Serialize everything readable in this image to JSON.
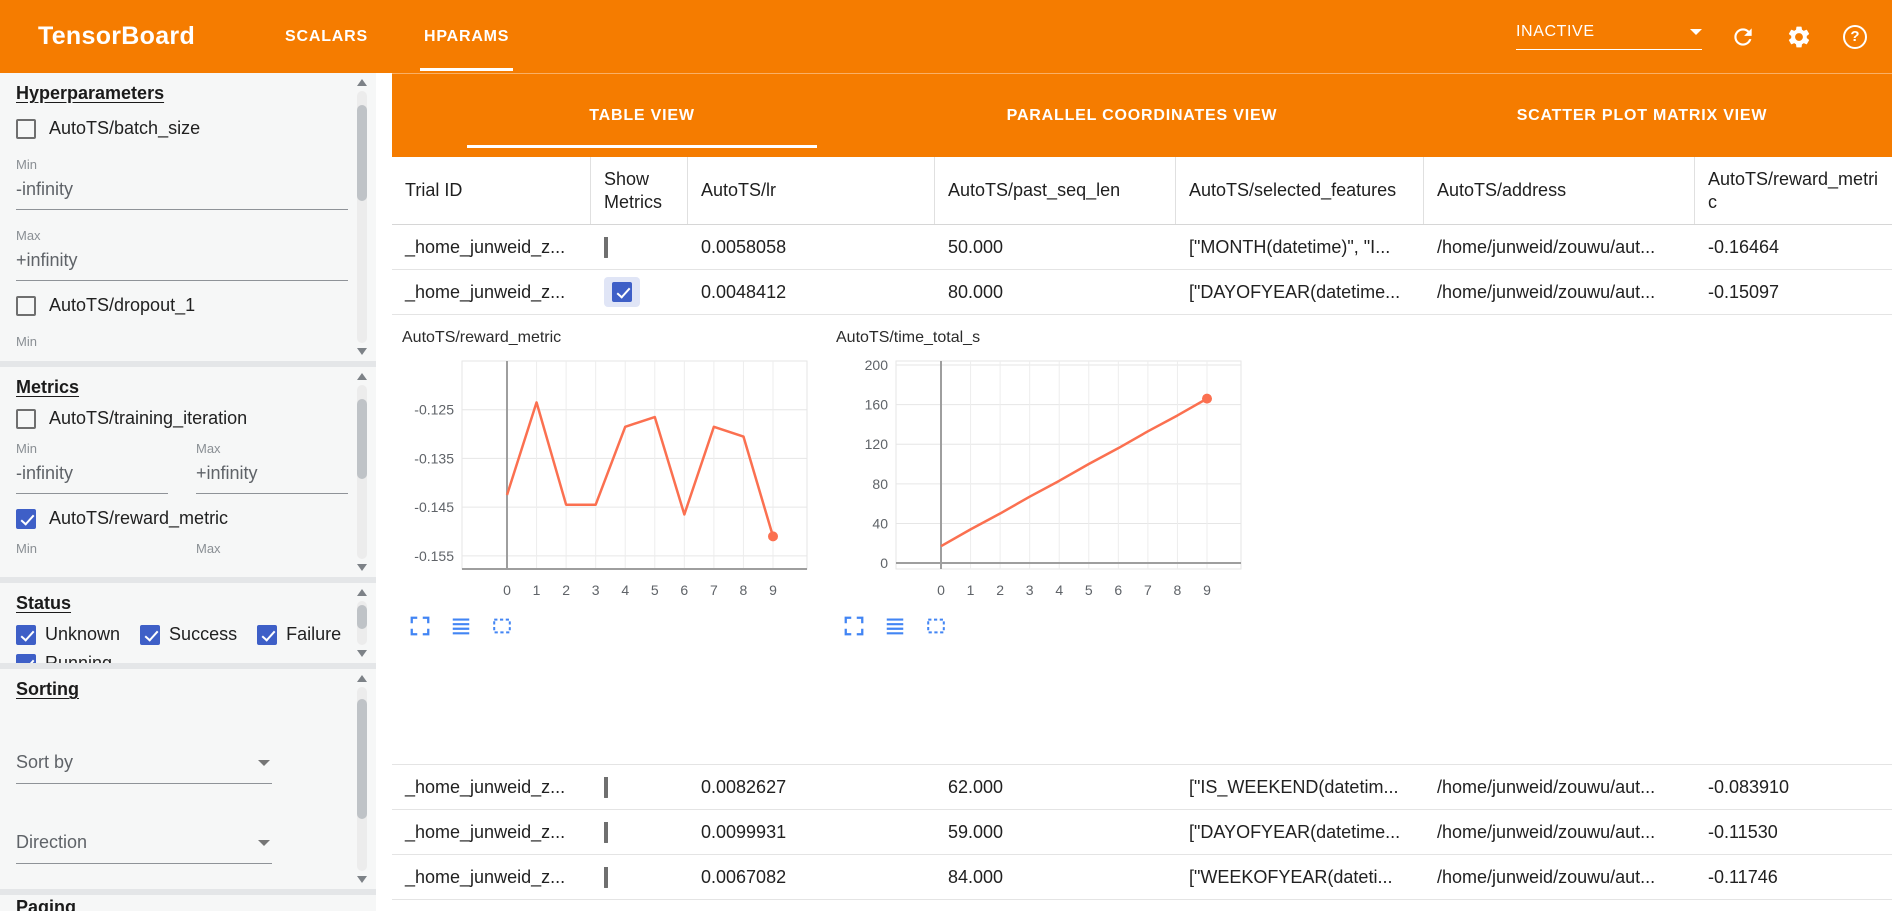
{
  "colors": {
    "header_orange": "#f57c00",
    "checkbox_blue": "#3e5fc7",
    "icon_blue": "#4285f4",
    "chart_line_orange": "#fb7050"
  },
  "header": {
    "app_title": "TensorBoard",
    "tabs": [
      {
        "label": "SCALARS",
        "active": false
      },
      {
        "label": "HPARAMS",
        "active": true
      }
    ],
    "run_selector": {
      "value": "INACTIVE"
    }
  },
  "sidebar": {
    "hyperparameters": {
      "title": "Hyperparameters",
      "min_label": "Min",
      "max_label": "Max",
      "items": [
        {
          "label": "AutoTS/batch_size",
          "checked": false,
          "min_value": "-infinity",
          "max_value": "+infinity"
        },
        {
          "label": "AutoTS/dropout_1",
          "checked": false
        }
      ]
    },
    "metrics": {
      "title": "Metrics",
      "min_label": "Min",
      "max_label": "Max",
      "items": [
        {
          "label": "AutoTS/training_iteration",
          "checked": false,
          "min_value": "-infinity",
          "max_value": "+infinity"
        },
        {
          "label": "AutoTS/reward_metric",
          "checked": true
        }
      ]
    },
    "status": {
      "title": "Status",
      "options": [
        {
          "label": "Unknown",
          "checked": true
        },
        {
          "label": "Success",
          "checked": true
        },
        {
          "label": "Failure",
          "checked": true
        },
        {
          "label": "Running",
          "checked": true
        }
      ]
    },
    "sorting": {
      "title": "Sorting",
      "sort_by_placeholder": "Sort by",
      "direction_placeholder": "Direction"
    },
    "paging": {
      "title": "Paging"
    }
  },
  "main": {
    "view_tabs": [
      {
        "label": "TABLE VIEW",
        "active": true
      },
      {
        "label": "PARALLEL COORDINATES VIEW",
        "active": false
      },
      {
        "label": "SCATTER PLOT MATRIX VIEW",
        "active": false
      }
    ],
    "table": {
      "columns": [
        "Trial ID",
        "Show Metrics",
        "AutoTS/lr",
        "AutoTS/past_seq_len",
        "AutoTS/selected_features",
        "AutoTS/address",
        "AutoTS/reward_metric"
      ],
      "rows": [
        {
          "trial_id": "_home_junweid_z...",
          "show_metrics": false,
          "lr": "0.0058058",
          "past_seq_len": "50.000",
          "selected_features": "[\"MONTH(datetime)\", \"I...",
          "address": "/home/junweid/zouwu/aut...",
          "reward_metric": "-0.16464"
        },
        {
          "trial_id": "_home_junweid_z...",
          "show_metrics": true,
          "lr": "0.0048412",
          "past_seq_len": "80.000",
          "selected_features": "[\"DAYOFYEAR(datetime...",
          "address": "/home/junweid/zouwu/aut...",
          "reward_metric": "-0.15097"
        },
        {
          "trial_id": "_home_junweid_z...",
          "show_metrics": false,
          "lr": "0.0082627",
          "past_seq_len": "62.000",
          "selected_features": "[\"IS_WEEKEND(datetim...",
          "address": "/home/junweid/zouwu/aut...",
          "reward_metric": "-0.083910"
        },
        {
          "trial_id": "_home_junweid_z...",
          "show_metrics": false,
          "lr": "0.0099931",
          "past_seq_len": "59.000",
          "selected_features": "[\"DAYOFYEAR(datetime...",
          "address": "/home/junweid/zouwu/aut...",
          "reward_metric": "-0.11530"
        },
        {
          "trial_id": "_home_junweid_z...",
          "show_metrics": false,
          "lr": "0.0067082",
          "past_seq_len": "84.000",
          "selected_features": "[\"WEEKOFYEAR(dateti...",
          "address": "/home/junweid/zouwu/aut...",
          "reward_metric": "-0.11746"
        }
      ]
    }
  },
  "chart_data": [
    {
      "type": "line",
      "title": "AutoTS/reward_metric",
      "x": [
        0,
        1,
        2,
        3,
        4,
        5,
        6,
        7,
        8,
        9
      ],
      "values": [
        -0.1425,
        -0.1235,
        -0.1445,
        -0.1445,
        -0.1285,
        -0.1265,
        -0.1465,
        -0.1285,
        -0.1305,
        -0.151
      ],
      "yticks": [
        -0.125,
        -0.135,
        -0.145,
        -0.155
      ],
      "ylim": [
        -0.1577,
        -0.115
      ],
      "grid": true,
      "line_color": "#fb7050",
      "end_dot": true,
      "zero_axis": false
    },
    {
      "type": "line",
      "title": "AutoTS/time_total_s",
      "x": [
        0,
        1,
        2,
        3,
        4,
        5,
        6,
        7,
        8,
        9
      ],
      "values": [
        17,
        34,
        50,
        67,
        83,
        100,
        116,
        133,
        149,
        166
      ],
      "yticks": [
        0,
        40,
        80,
        120,
        160,
        200
      ],
      "ylim": [
        -6,
        204
      ],
      "grid": true,
      "line_color": "#fb7050",
      "end_dot": true,
      "zero_axis": true
    }
  ]
}
